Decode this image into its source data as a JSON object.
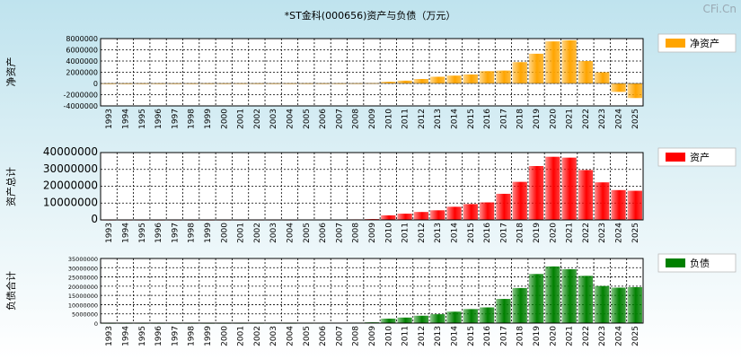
{
  "title": "*ST金科(000656)资产与负债（万元）",
  "watermark": "CFi.Cn",
  "chart_data": [
    {
      "type": "bar",
      "ylabel": "净资产",
      "legend": "净资产",
      "color": "#ffa500",
      "ylim": [
        -4000000,
        8000000
      ],
      "yticks": [
        -4000000,
        -2000000,
        0,
        2000000,
        4000000,
        6000000,
        8000000
      ],
      "categories": [
        "1993",
        "1994",
        "1995",
        "1996",
        "1997",
        "1998",
        "1999",
        "2000",
        "2001",
        "2002",
        "2003",
        "2004",
        "2005",
        "2006",
        "2007",
        "2008",
        "2009",
        "2010",
        "2011",
        "2012",
        "2013",
        "2014",
        "2015",
        "2016",
        "2017",
        "2018",
        "2019",
        "2020",
        "2021",
        "2022",
        "2023",
        "2024",
        "2025"
      ],
      "values": [
        20000,
        20000,
        25000,
        25000,
        25000,
        25000,
        25000,
        25000,
        30000,
        30000,
        30000,
        30000,
        30000,
        30000,
        30000,
        40000,
        60000,
        300000,
        500000,
        800000,
        1200000,
        1400000,
        1600000,
        2200000,
        2300000,
        3800000,
        5300000,
        7500000,
        7700000,
        4000000,
        2000000,
        -1500000,
        -2600000
      ]
    },
    {
      "type": "bar",
      "ylabel": "资产总计",
      "legend": "资产",
      "color": "#ff0000",
      "ylim": [
        0,
        40000000
      ],
      "yticks": [
        0,
        10000000,
        20000000,
        30000000,
        40000000
      ],
      "categories": [
        "1993",
        "1994",
        "1995",
        "1996",
        "1997",
        "1998",
        "1999",
        "2000",
        "2001",
        "2002",
        "2003",
        "2004",
        "2005",
        "2006",
        "2007",
        "2008",
        "2009",
        "2010",
        "2011",
        "2012",
        "2013",
        "2014",
        "2015",
        "2016",
        "2017",
        "2018",
        "2019",
        "2020",
        "2021",
        "2022",
        "2023",
        "2024",
        "2025"
      ],
      "values": [
        100000,
        100000,
        100000,
        100000,
        100000,
        100000,
        100000,
        100000,
        120000,
        120000,
        120000,
        120000,
        150000,
        150000,
        200000,
        300000,
        500000,
        2700000,
        3700000,
        4700000,
        5700000,
        7800000,
        9400000,
        10400000,
        15500000,
        22600000,
        32000000,
        37500000,
        37000000,
        29600000,
        22300000,
        17700000,
        17300000
      ]
    },
    {
      "type": "bar",
      "ylabel": "负债合计",
      "legend": "负债",
      "color": "#008000",
      "ylim": [
        0,
        35000000
      ],
      "yticks": [
        0,
        5000000,
        10000000,
        15000000,
        20000000,
        25000000,
        30000000,
        35000000
      ],
      "categories": [
        "1993",
        "1994",
        "1995",
        "1996",
        "1997",
        "1998",
        "1999",
        "2000",
        "2001",
        "2002",
        "2003",
        "2004",
        "2005",
        "2006",
        "2007",
        "2008",
        "2009",
        "2010",
        "2011",
        "2012",
        "2013",
        "2014",
        "2015",
        "2016",
        "2017",
        "2018",
        "2019",
        "2020",
        "2021",
        "2022",
        "2023",
        "2024",
        "2025"
      ],
      "values": [
        80000,
        80000,
        80000,
        80000,
        80000,
        80000,
        80000,
        80000,
        90000,
        90000,
        90000,
        90000,
        120000,
        120000,
        170000,
        260000,
        440000,
        2400000,
        3000000,
        4000000,
        4800000,
        6200000,
        7600000,
        8500000,
        13100000,
        19000000,
        26600000,
        30700000,
        29200000,
        25600000,
        20100000,
        19200000,
        19500000
      ]
    }
  ]
}
